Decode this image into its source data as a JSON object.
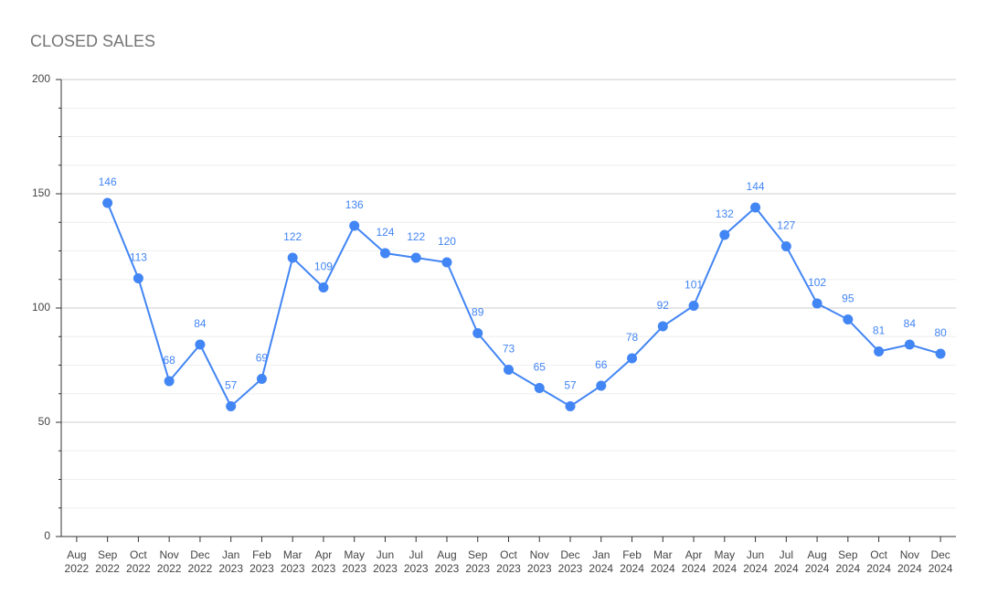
{
  "chart_data": {
    "type": "line",
    "title": "CLOSED SALES",
    "categories": [
      "Aug 2022",
      "Sep 2022",
      "Oct 2022",
      "Nov 2022",
      "Dec 2022",
      "Jan 2023",
      "Feb 2023",
      "Mar 2023",
      "Apr 2023",
      "May 2023",
      "Jun 2023",
      "Jul 2023",
      "Aug 2023",
      "Sep 2023",
      "Oct 2023",
      "Nov 2023",
      "Dec 2023",
      "Jan 2024",
      "Feb 2024",
      "Mar 2024",
      "Apr 2024",
      "May 2024",
      "Jun 2024",
      "Jul 2024",
      "Aug 2024",
      "Sep 2024",
      "Oct 2024",
      "Nov 2024",
      "Dec 2024"
    ],
    "series": [
      {
        "name": "Closed Sales",
        "color": "#4285f4",
        "values": [
          null,
          146,
          113,
          68,
          84,
          57,
          69,
          122,
          109,
          136,
          124,
          122,
          120,
          89,
          73,
          65,
          57,
          66,
          78,
          92,
          101,
          132,
          144,
          127,
          102,
          95,
          81,
          84,
          80
        ]
      }
    ],
    "ylim": [
      0,
      200
    ],
    "yticks": [
      0,
      50,
      100,
      150,
      200
    ],
    "minor_yticks": [
      12.5,
      25,
      37.5,
      62.5,
      75,
      87.5,
      112.5,
      125,
      137.5,
      162.5,
      175,
      187.5
    ],
    "grid": true
  }
}
